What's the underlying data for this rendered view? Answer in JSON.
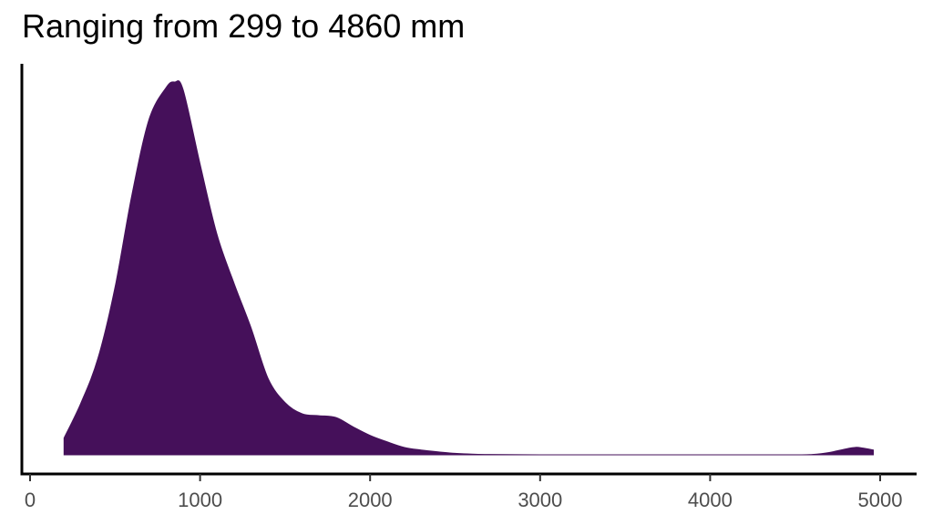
{
  "chart_data": {
    "type": "area",
    "subtype": "density",
    "title": "Ranging from 299 to 4860 mm",
    "xlabel": "",
    "ylabel": "",
    "xlim": [
      200,
      4960
    ],
    "ylim": [
      0,
      1
    ],
    "x_ticks": [
      0,
      1000,
      2000,
      3000,
      4000,
      5000
    ],
    "x_tick_labels": [
      "0",
      "1000",
      "2000",
      "3000",
      "4000",
      "5000"
    ],
    "y_axis_ticks_shown": false,
    "grid": false,
    "legend": "none",
    "fill_color": "#45105a",
    "series": [
      {
        "x": [
          200,
          300,
          400,
          500,
          600,
          700,
          800,
          850,
          900,
          1000,
          1100,
          1200,
          1300,
          1400,
          1500,
          1600,
          1700,
          1800,
          1900,
          2000,
          2100,
          2200,
          2300,
          2400,
          2500,
          2600,
          2700,
          3000,
          3500,
          4000,
          4500,
          4600,
          4700,
          4800,
          4860,
          4900,
          4960
        ],
        "y": [
          0.045,
          0.14,
          0.26,
          0.45,
          0.7,
          0.9,
          0.985,
          1.0,
          0.98,
          0.78,
          0.59,
          0.46,
          0.34,
          0.205,
          0.14,
          0.11,
          0.105,
          0.1,
          0.075,
          0.052,
          0.035,
          0.02,
          0.013,
          0.008,
          0.004,
          0.002,
          0.001,
          0.0,
          0.0,
          0.0,
          0.0,
          0.001,
          0.006,
          0.016,
          0.02,
          0.018,
          0.013
        ]
      }
    ]
  }
}
